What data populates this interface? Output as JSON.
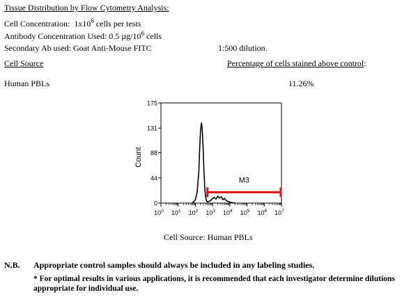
{
  "header": {
    "title": "Tissue Distribution by Flow Cytometry Analysis:",
    "cell_conc_label": "Cell Concentration:",
    "cell_conc_base": "1x10",
    "cell_conc_exp": "6",
    "cell_conc_unit": "cells per tests",
    "ab_conc_prefix": "Antibody Concentration Used: 0.5 µg/10",
    "ab_conc_exp": "6",
    "ab_conc_unit": "cells",
    "secondary_ab": "Secondary Ab used: Goat Anti-Mouse FITC",
    "dilution": "1:500 dilution."
  },
  "table": {
    "col_source": "Cell Source",
    "col_pct": "Percentage of cells stained above control",
    "col_pct_colon": ":",
    "row_source": "Human PBLs",
    "row_pct": "11.26%"
  },
  "chart_data": {
    "type": "histogram",
    "ylabel": "Count",
    "yticks": [
      "175",
      "131",
      "88",
      "44",
      "0"
    ],
    "ytick_values": [
      175,
      131,
      88,
      44,
      0
    ],
    "ylim": [
      0,
      175
    ],
    "x_scale": "log",
    "xticks": [
      {
        "base": "10",
        "exp": "0"
      },
      {
        "base": "10",
        "exp": "1"
      },
      {
        "base": "10",
        "exp": "2"
      },
      {
        "base": "10",
        "exp": "3"
      },
      {
        "base": "10",
        "exp": "4"
      },
      {
        "base": "10",
        "exp": "5"
      },
      {
        "base": "10",
        "exp": "6"
      },
      {
        "base": "10",
        "exp": "7"
      }
    ],
    "xlim_log": [
      0,
      7
    ],
    "gate": {
      "label": "M3",
      "start_log": 2.7,
      "end_log": 7,
      "color": "#dd1111"
    },
    "histogram": {
      "x_log": [
        1.8,
        1.9,
        2.0,
        2.1,
        2.2,
        2.25,
        2.3,
        2.35,
        2.4,
        2.45,
        2.5,
        2.55,
        2.6,
        2.65,
        2.7,
        2.8,
        2.9,
        3.0,
        3.1,
        3.2,
        3.3,
        3.4,
        3.5,
        3.6,
        3.7,
        3.8,
        3.9,
        4.0,
        4.1,
        4.3
      ],
      "counts": [
        0,
        2,
        6,
        18,
        55,
        95,
        125,
        140,
        130,
        95,
        55,
        25,
        10,
        4,
        2,
        3,
        5,
        8,
        10,
        7,
        12,
        9,
        11,
        6,
        8,
        4,
        3,
        2,
        1,
        0
      ]
    },
    "caption": "Cell Source: Human PBLs"
  },
  "notes": {
    "nb_label": "N.B.",
    "nb_text": "Appropriate control samples should always be included in any labeling studies.",
    "optimal_text": "* For optimal results in various applications, it is recommended that each investigator determine dilutions appropriate for individual use."
  }
}
